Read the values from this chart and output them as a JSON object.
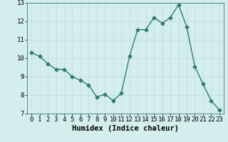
{
  "xlabel": "Humidex (Indice chaleur)",
  "x": [
    0,
    1,
    2,
    3,
    4,
    5,
    6,
    7,
    8,
    9,
    10,
    11,
    12,
    13,
    14,
    15,
    16,
    17,
    18,
    19,
    20,
    21,
    22,
    23
  ],
  "y": [
    10.3,
    10.1,
    9.7,
    9.4,
    9.4,
    9.0,
    8.8,
    8.55,
    7.9,
    8.05,
    7.7,
    8.1,
    10.1,
    11.55,
    11.55,
    12.2,
    11.9,
    12.2,
    12.9,
    11.7,
    9.55,
    8.6,
    7.7,
    7.2
  ],
  "line_color": "#2e7d6e",
  "marker": "D",
  "marker_size": 2.5,
  "bg_color": "#d4eeee",
  "grid_color": "#c0d8d8",
  "ylim": [
    7,
    13
  ],
  "yticks": [
    7,
    8,
    9,
    10,
    11,
    12,
    13
  ],
  "xticks": [
    0,
    1,
    2,
    3,
    4,
    5,
    6,
    7,
    8,
    9,
    10,
    11,
    12,
    13,
    14,
    15,
    16,
    17,
    18,
    19,
    20,
    21,
    22,
    23
  ],
  "xlabel_fontsize": 7.5,
  "tick_fontsize": 6.5,
  "linewidth": 1.0
}
